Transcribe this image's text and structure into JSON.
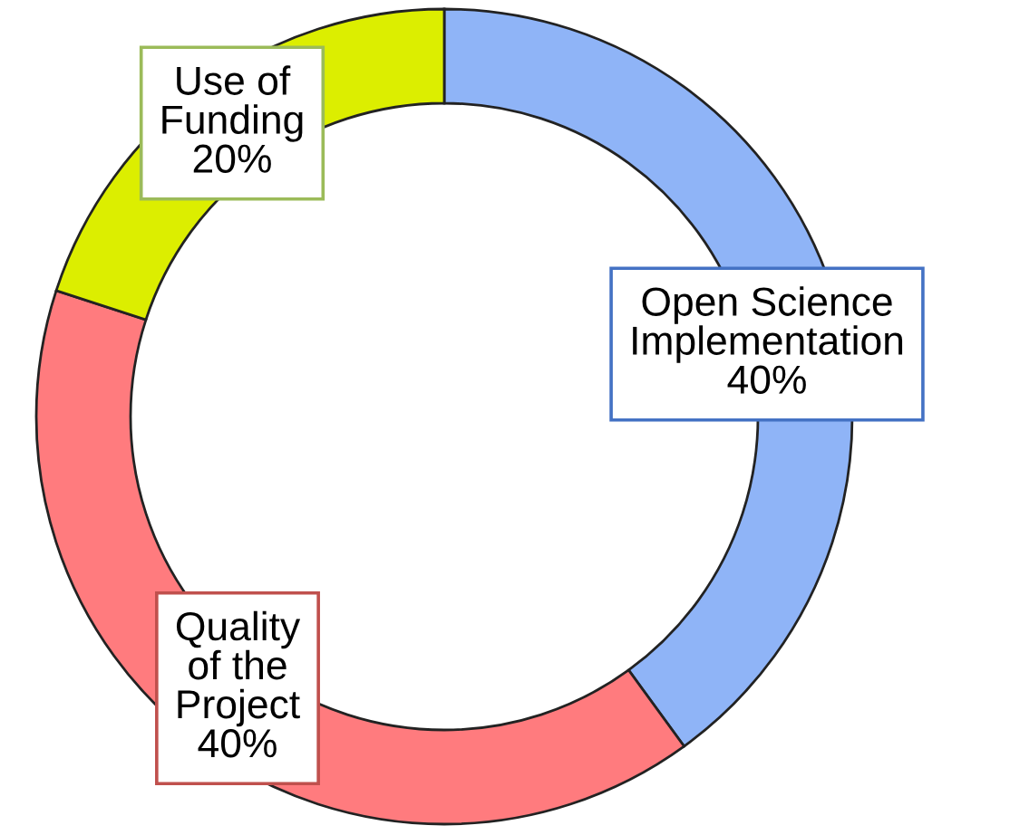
{
  "chart_data": {
    "type": "donut",
    "categories": [
      "Open Science\nImplementation",
      "Quality\nof the\nProject",
      "Use of\nFunding"
    ],
    "values": [
      40,
      40,
      20
    ],
    "value_labels": [
      "40%",
      "40%",
      "20%"
    ],
    "colors": [
      "#8fb4f7",
      "#ff7b7e",
      "#dcee00"
    ]
  }
}
